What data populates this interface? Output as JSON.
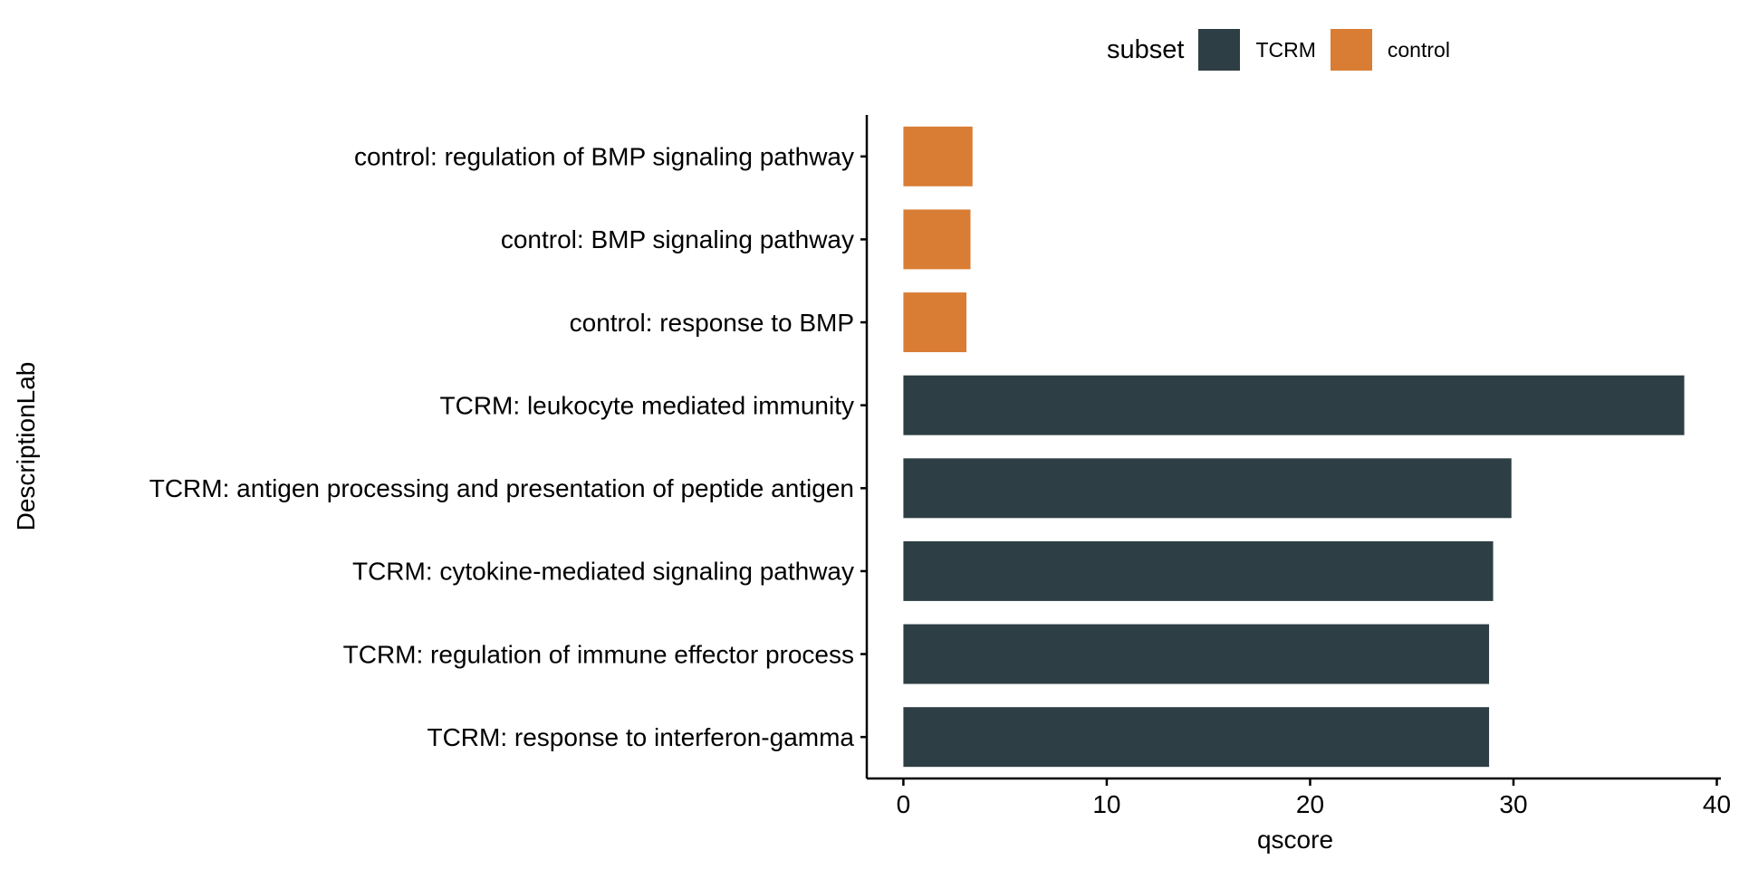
{
  "chart_data": {
    "type": "bar",
    "orientation": "horizontal",
    "categories": [
      "control: regulation of BMP signaling pathway",
      "control: BMP signaling pathway",
      "control: response to BMP",
      "TCRM: leukocyte mediated immunity",
      "TCRM: antigen processing and presentation of peptide antigen",
      "TCRM: cytokine-mediated signaling pathway",
      "TCRM: regulation of immune effector process",
      "TCRM: response to interferon-gamma"
    ],
    "values": [
      3.4,
      3.3,
      3.1,
      38.4,
      29.9,
      29.0,
      28.8,
      28.8
    ],
    "groups": [
      "control",
      "control",
      "control",
      "TCRM",
      "TCRM",
      "TCRM",
      "TCRM",
      "TCRM"
    ],
    "xlabel": "qscore",
    "ylabel": "DescriptionLab",
    "xlim": [
      -1.8,
      40.2
    ],
    "xticks": [
      0,
      10,
      20,
      30,
      40
    ],
    "grid": false,
    "legend": {
      "title": "subset",
      "position": "top",
      "entries": [
        {
          "name": "TCRM",
          "color": "#2d3e44"
        },
        {
          "name": "control",
          "color": "#d97d34"
        }
      ]
    }
  }
}
